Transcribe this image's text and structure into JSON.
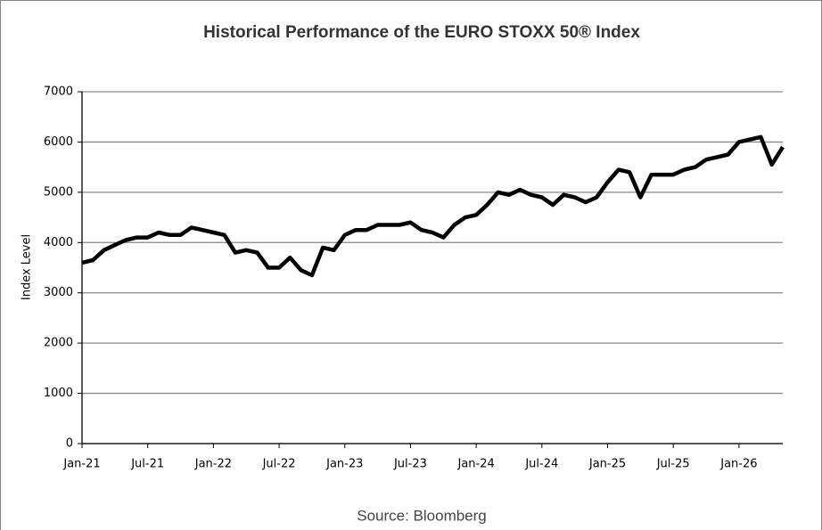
{
  "chart_data": {
    "type": "line",
    "title": "Historical Performance of the EURO STOXX 50® Index",
    "y_label": "Index Level",
    "source": "Source: Bloomberg",
    "categories": [
      "Jan-21",
      "Feb-21",
      "Mar-21",
      "Apr-21",
      "May-21",
      "Jun-21",
      "Jul-21",
      "Aug-21",
      "Sep-21",
      "Oct-21",
      "Nov-21",
      "Dec-21",
      "Jan-22",
      "Feb-22",
      "Mar-22",
      "Apr-22",
      "May-22",
      "Jun-22",
      "Jul-22",
      "Aug-22",
      "Sep-22",
      "Oct-22",
      "Nov-22",
      "Dec-22",
      "Jan-23",
      "Feb-23",
      "Mar-23",
      "Apr-23",
      "May-23",
      "Jun-23",
      "Jul-23",
      "Aug-23",
      "Sep-23",
      "Oct-23",
      "Nov-23",
      "Dec-23",
      "Jan-24",
      "Feb-24",
      "Mar-24",
      "Apr-24",
      "May-24",
      "Jun-24",
      "Jul-24",
      "Aug-24",
      "Sep-24",
      "Oct-24",
      "Nov-24",
      "Dec-24",
      "Jan-25",
      "Feb-25",
      "Mar-25",
      "Apr-25",
      "May-25",
      "Jun-25",
      "Jul-25",
      "Aug-25",
      "Sep-25",
      "Oct-25",
      "Nov-25",
      "Dec-25",
      "Jan-26",
      "Feb-26",
      "Mar-26",
      "Apr-26",
      "May-26"
    ],
    "series": [
      {
        "name": "EURO STOXX 50",
        "color": "#000000",
        "values": [
          3600,
          3650,
          3850,
          3950,
          4050,
          4100,
          4100,
          4200,
          4150,
          4150,
          4300,
          4250,
          4200,
          4150,
          3800,
          3850,
          3800,
          3500,
          3500,
          3700,
          3450,
          3350,
          3900,
          3850,
          4150,
          4250,
          4250,
          4350,
          4350,
          4350,
          4400,
          4250,
          4200,
          4100,
          4350,
          4500,
          4550,
          4750,
          5000,
          4950,
          5050,
          4950,
          4900,
          4750,
          4950,
          4900,
          4800,
          4900,
          5200,
          5450,
          5400,
          4900,
          5350,
          5350,
          5350,
          5450,
          5500,
          5650,
          5700,
          5750,
          6000,
          6050,
          6100,
          5550,
          5900
        ]
      }
    ],
    "xticks": [
      "Jan-21",
      "Jul-21",
      "Jan-22",
      "Jul-22",
      "Jan-23",
      "Jul-23",
      "Jan-24",
      "Jul-24",
      "Jan-25",
      "Jul-25",
      "Jan-26"
    ],
    "ylim": [
      0,
      7000
    ],
    "yticks": [
      0,
      1000,
      2000,
      3000,
      4000,
      5000,
      6000,
      7000
    ],
    "grid": true
  }
}
